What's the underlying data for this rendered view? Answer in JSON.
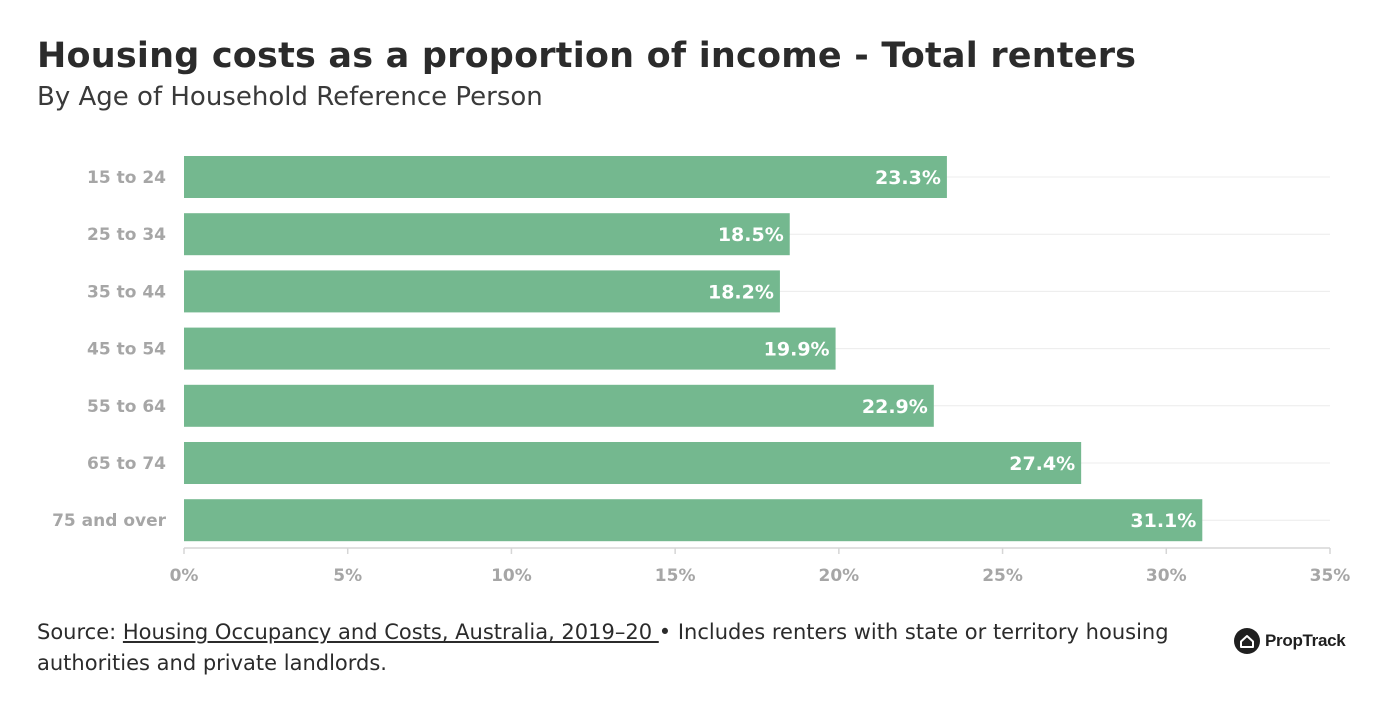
{
  "title": "Housing costs as a proportion of income - Total renters",
  "subtitle": "By Age of Household Reference Person",
  "footer": {
    "source_prefix": "Source: ",
    "source_link": "Housing Occupancy and Costs, Australia, 2019–20 ",
    "source_note": "• Includes renters with state or territory housing authorities and private landlords."
  },
  "brand": {
    "name": "PropTrack",
    "icon": "house-logo-icon"
  },
  "colors": {
    "bar": "#74b88f",
    "bar_label": "#ffffff",
    "tick_label": "#a6a6a6",
    "grid": "#ececec",
    "axis": "#d6d6d6"
  },
  "chart_data": {
    "type": "bar",
    "orientation": "horizontal",
    "title": "Housing costs as a proportion of income - Total renters",
    "subtitle": "By Age of Household Reference Person",
    "categories": [
      "15 to 24",
      "25 to 34",
      "35 to 44",
      "45 to 54",
      "55 to 64",
      "65 to 74",
      "75 and over"
    ],
    "values": [
      23.3,
      18.5,
      18.2,
      19.9,
      22.9,
      27.4,
      31.1
    ],
    "value_labels": [
      "23.3%",
      "18.5%",
      "18.2%",
      "19.9%",
      "22.9%",
      "27.4%",
      "31.1%"
    ],
    "xlim": [
      0,
      35
    ],
    "xticks": [
      0,
      5,
      10,
      15,
      20,
      25,
      30,
      35
    ],
    "xtick_labels": [
      "0%",
      "5%",
      "10%",
      "15%",
      "20%",
      "25%",
      "30%",
      "35%"
    ],
    "grid": "vertical"
  }
}
